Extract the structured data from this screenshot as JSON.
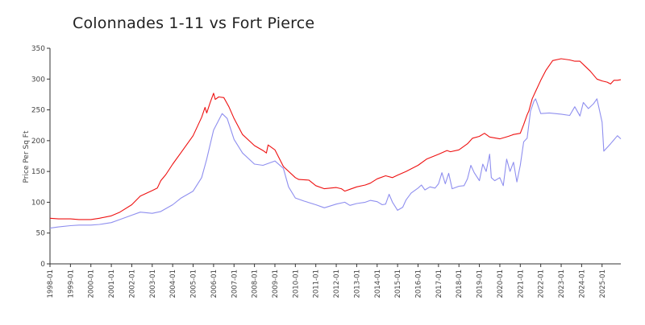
{
  "chart_data": {
    "type": "line",
    "title": "Colonnades 1-11 vs Fort Pierce",
    "xlabel": "",
    "ylabel": "Price Per Sq Ft",
    "ylim": [
      0,
      350
    ],
    "yticks": [
      0,
      50,
      100,
      150,
      200,
      250,
      300,
      350
    ],
    "xticks": [
      "1998-01",
      "1999-01",
      "2000-01",
      "2001-01",
      "2002-01",
      "2003-01",
      "2004-01",
      "2005-01",
      "2006-01",
      "2007-01",
      "2008-01",
      "2009-01",
      "2010-01",
      "2011-01",
      "2012-01",
      "2013-01",
      "2014-01",
      "2015-01",
      "2016-01",
      "2017-01",
      "2018-01",
      "2019-01",
      "2020-01",
      "2021-01",
      "2022-01",
      "2023-01",
      "2024-01",
      "2025-01"
    ],
    "x_start": "1998-01",
    "x_end": "2025-12",
    "grid": false,
    "legend": "none",
    "series": [
      {
        "color": "#ee1111",
        "points": [
          [
            "1998-01",
            74
          ],
          [
            "1998-06",
            73
          ],
          [
            "1999-01",
            73
          ],
          [
            "1999-06",
            72
          ],
          [
            "2000-01",
            72
          ],
          [
            "2000-06",
            74
          ],
          [
            "2001-01",
            78
          ],
          [
            "2001-06",
            84
          ],
          [
            "2002-01",
            96
          ],
          [
            "2002-06",
            110
          ],
          [
            "2003-01",
            119
          ],
          [
            "2003-04",
            123
          ],
          [
            "2003-06",
            135
          ],
          [
            "2003-09",
            145
          ],
          [
            "2004-01",
            162
          ],
          [
            "2004-06",
            181
          ],
          [
            "2005-01",
            208
          ],
          [
            "2005-06",
            238
          ],
          [
            "2005-08",
            254
          ],
          [
            "2005-09",
            245
          ],
          [
            "2005-11",
            262
          ],
          [
            "2006-01",
            277
          ],
          [
            "2006-02",
            267
          ],
          [
            "2006-04",
            271
          ],
          [
            "2006-07",
            270
          ],
          [
            "2006-10",
            255
          ],
          [
            "2007-01",
            236
          ],
          [
            "2007-06",
            210
          ],
          [
            "2008-01",
            192
          ],
          [
            "2008-06",
            184
          ],
          [
            "2008-08",
            180
          ],
          [
            "2008-09",
            193
          ],
          [
            "2009-01",
            185
          ],
          [
            "2009-06",
            158
          ],
          [
            "2010-01",
            140
          ],
          [
            "2010-03",
            137
          ],
          [
            "2010-09",
            136
          ],
          [
            "2011-01",
            127
          ],
          [
            "2011-06",
            122
          ],
          [
            "2012-01",
            124
          ],
          [
            "2012-04",
            122
          ],
          [
            "2012-06",
            118
          ],
          [
            "2012-09",
            121
          ],
          [
            "2013-01",
            125
          ],
          [
            "2013-06",
            128
          ],
          [
            "2013-09",
            131
          ],
          [
            "2014-01",
            138
          ],
          [
            "2014-06",
            143
          ],
          [
            "2014-10",
            140
          ],
          [
            "2015-01",
            144
          ],
          [
            "2015-06",
            150
          ],
          [
            "2016-01",
            160
          ],
          [
            "2016-06",
            170
          ],
          [
            "2017-01",
            178
          ],
          [
            "2017-06",
            184
          ],
          [
            "2017-08",
            182
          ],
          [
            "2018-01",
            185
          ],
          [
            "2018-06",
            195
          ],
          [
            "2018-09",
            204
          ],
          [
            "2019-01",
            207
          ],
          [
            "2019-04",
            212
          ],
          [
            "2019-07",
            206
          ],
          [
            "2020-01",
            203
          ],
          [
            "2020-06",
            207
          ],
          [
            "2020-09",
            210
          ],
          [
            "2021-01",
            212
          ],
          [
            "2021-03",
            226
          ],
          [
            "2021-05",
            242
          ],
          [
            "2021-06",
            248
          ],
          [
            "2021-08",
            268
          ],
          [
            "2021-10",
            280
          ],
          [
            "2022-01",
            298
          ],
          [
            "2022-04",
            314
          ],
          [
            "2022-08",
            330
          ],
          [
            "2023-01",
            333
          ],
          [
            "2023-06",
            331
          ],
          [
            "2023-09",
            329
          ],
          [
            "2023-12",
            329
          ],
          [
            "2024-03",
            321
          ],
          [
            "2024-06",
            313
          ],
          [
            "2024-10",
            300
          ],
          [
            "2025-01",
            297
          ],
          [
            "2025-04",
            295
          ],
          [
            "2025-06",
            292
          ],
          [
            "2025-08",
            298
          ],
          [
            "2025-10",
            298
          ],
          [
            "2025-12",
            299
          ]
        ]
      },
      {
        "color": "#8f8fef",
        "points": [
          [
            "1998-01",
            58
          ],
          [
            "1998-06",
            60
          ],
          [
            "1999-01",
            62
          ],
          [
            "1999-06",
            63
          ],
          [
            "2000-01",
            63
          ],
          [
            "2000-06",
            64
          ],
          [
            "2001-01",
            67
          ],
          [
            "2001-06",
            72
          ],
          [
            "2002-01",
            79
          ],
          [
            "2002-06",
            84
          ],
          [
            "2003-01",
            82
          ],
          [
            "2003-06",
            85
          ],
          [
            "2004-01",
            96
          ],
          [
            "2004-06",
            107
          ],
          [
            "2005-01",
            118
          ],
          [
            "2005-06",
            140
          ],
          [
            "2005-09",
            170
          ],
          [
            "2006-01",
            217
          ],
          [
            "2006-06",
            244
          ],
          [
            "2006-09",
            236
          ],
          [
            "2007-01",
            202
          ],
          [
            "2007-06",
            180
          ],
          [
            "2008-01",
            162
          ],
          [
            "2008-06",
            160
          ],
          [
            "2009-01",
            167
          ],
          [
            "2009-06",
            155
          ],
          [
            "2009-09",
            125
          ],
          [
            "2010-01",
            107
          ],
          [
            "2010-06",
            102
          ],
          [
            "2011-01",
            96
          ],
          [
            "2011-06",
            91
          ],
          [
            "2012-01",
            97
          ],
          [
            "2012-06",
            100
          ],
          [
            "2012-09",
            95
          ],
          [
            "2013-01",
            98
          ],
          [
            "2013-06",
            100
          ],
          [
            "2013-09",
            103
          ],
          [
            "2014-01",
            101
          ],
          [
            "2014-04",
            96
          ],
          [
            "2014-06",
            97
          ],
          [
            "2014-08",
            113
          ],
          [
            "2014-10",
            100
          ],
          [
            "2015-01",
            87
          ],
          [
            "2015-04",
            92
          ],
          [
            "2015-06",
            104
          ],
          [
            "2015-09",
            115
          ],
          [
            "2016-01",
            123
          ],
          [
            "2016-03",
            128
          ],
          [
            "2016-05",
            120
          ],
          [
            "2016-08",
            125
          ],
          [
            "2016-11",
            123
          ],
          [
            "2017-01",
            130
          ],
          [
            "2017-03",
            148
          ],
          [
            "2017-05",
            130
          ],
          [
            "2017-07",
            147
          ],
          [
            "2017-09",
            122
          ],
          [
            "2018-01",
            126
          ],
          [
            "2018-04",
            127
          ],
          [
            "2018-06",
            138
          ],
          [
            "2018-08",
            160
          ],
          [
            "2018-10",
            148
          ],
          [
            "2019-01",
            135
          ],
          [
            "2019-03",
            162
          ],
          [
            "2019-05",
            150
          ],
          [
            "2019-07",
            178
          ],
          [
            "2019-08",
            140
          ],
          [
            "2019-10",
            135
          ],
          [
            "2020-01",
            140
          ],
          [
            "2020-03",
            127
          ],
          [
            "2020-05",
            170
          ],
          [
            "2020-07",
            150
          ],
          [
            "2020-09",
            165
          ],
          [
            "2020-11",
            133
          ],
          [
            "2021-01",
            160
          ],
          [
            "2021-03",
            198
          ],
          [
            "2021-05",
            204
          ],
          [
            "2021-07",
            248
          ],
          [
            "2021-09",
            264
          ],
          [
            "2021-10",
            268
          ],
          [
            "2022-01",
            244
          ],
          [
            "2022-06",
            245
          ],
          [
            "2023-01",
            243
          ],
          [
            "2023-06",
            241
          ],
          [
            "2023-09",
            255
          ],
          [
            "2023-12",
            240
          ],
          [
            "2024-02",
            262
          ],
          [
            "2024-05",
            252
          ],
          [
            "2024-08",
            260
          ],
          [
            "2024-10",
            268
          ],
          [
            "2025-01",
            230
          ],
          [
            "2025-02",
            183
          ],
          [
            "2025-06",
            195
          ],
          [
            "2025-10",
            208
          ],
          [
            "2025-12",
            203
          ]
        ]
      }
    ]
  }
}
